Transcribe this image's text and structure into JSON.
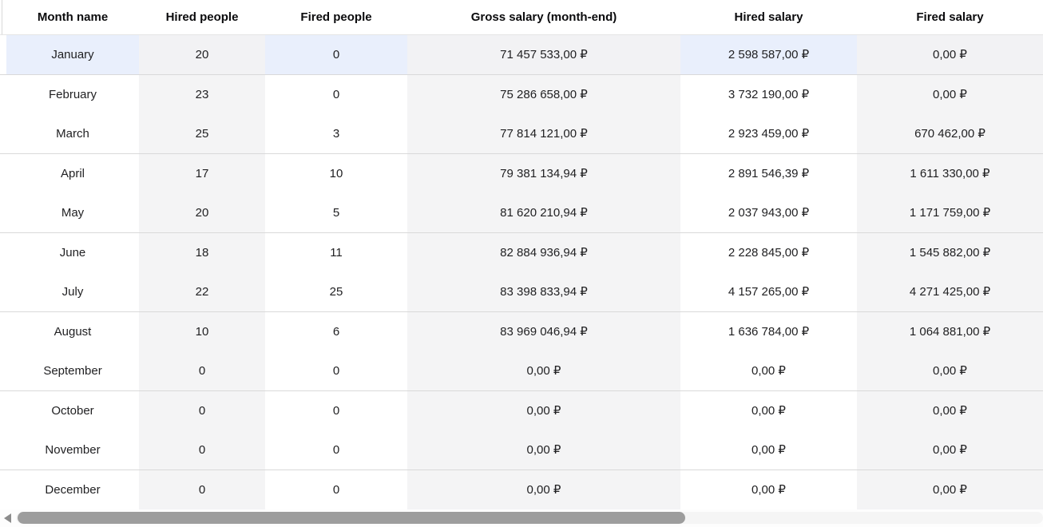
{
  "table": {
    "columns": [
      {
        "id": "month",
        "label": "Month name"
      },
      {
        "id": "hired",
        "label": "Hired people"
      },
      {
        "id": "fired",
        "label": "Fired people"
      },
      {
        "id": "gross",
        "label": "Gross salary (month-end)"
      },
      {
        "id": "hired_salary",
        "label": "Hired salary"
      },
      {
        "id": "fired_salary",
        "label": "Fired salary"
      }
    ],
    "rows": [
      {
        "cells": [
          "January",
          "20",
          "0",
          "71 457 533,00 ₽",
          "2 598 587,00 ₽",
          "0,00 ₽"
        ],
        "selected": true,
        "group_end": true
      },
      {
        "cells": [
          "February",
          "23",
          "0",
          "75 286 658,00 ₽",
          "3 732 190,00 ₽",
          "0,00 ₽"
        ],
        "selected": false,
        "group_end": false
      },
      {
        "cells": [
          "March",
          "25",
          "3",
          "77 814 121,00 ₽",
          "2 923 459,00 ₽",
          "670 462,00 ₽"
        ],
        "selected": false,
        "group_end": true
      },
      {
        "cells": [
          "April",
          "17",
          "10",
          "79 381 134,94 ₽",
          "2 891 546,39 ₽",
          "1 611 330,00 ₽"
        ],
        "selected": false,
        "group_end": false
      },
      {
        "cells": [
          "May",
          "20",
          "5",
          "81 620 210,94 ₽",
          "2 037 943,00 ₽",
          "1 171 759,00 ₽"
        ],
        "selected": false,
        "group_end": true
      },
      {
        "cells": [
          "June",
          "18",
          "11",
          "82 884 936,94 ₽",
          "2 228 845,00 ₽",
          "1 545 882,00 ₽"
        ],
        "selected": false,
        "group_end": false
      },
      {
        "cells": [
          "July",
          "22",
          "25",
          "83 398 833,94 ₽",
          "4 157 265,00 ₽",
          "4 271 425,00 ₽"
        ],
        "selected": false,
        "group_end": true
      },
      {
        "cells": [
          "August",
          "10",
          "6",
          "83 969 046,94 ₽",
          "1 636 784,00 ₽",
          "1 064 881,00 ₽"
        ],
        "selected": false,
        "group_end": false
      },
      {
        "cells": [
          "September",
          "0",
          "0",
          "0,00 ₽",
          "0,00 ₽",
          "0,00 ₽"
        ],
        "selected": false,
        "group_end": true
      },
      {
        "cells": [
          "October",
          "0",
          "0",
          "0,00 ₽",
          "0,00 ₽",
          "0,00 ₽"
        ],
        "selected": false,
        "group_end": false
      },
      {
        "cells": [
          "November",
          "0",
          "0",
          "0,00 ₽",
          "0,00 ₽",
          "0,00 ₽"
        ],
        "selected": false,
        "group_end": true
      },
      {
        "cells": [
          "December",
          "0",
          "0",
          "0,00 ₽",
          "0,00 ₽",
          "0,00 ₽"
        ],
        "selected": false,
        "group_end": false
      }
    ],
    "currency_symbol": "₽",
    "selected_row": "January"
  },
  "scrollbar": {
    "orientation": "horizontal",
    "left_arrow_icon": "left-arrow-icon"
  },
  "colors": {
    "stripe_column_bg": "#f4f4f5",
    "selected_plain_bg": "#e9effc",
    "selected_stripe_bg": "#f2f2f4",
    "group_separator": "#d9d9d9",
    "header_border": "#e5e5e5",
    "scroll_thumb": "#9d9d9d",
    "text": "#1f1f21"
  }
}
